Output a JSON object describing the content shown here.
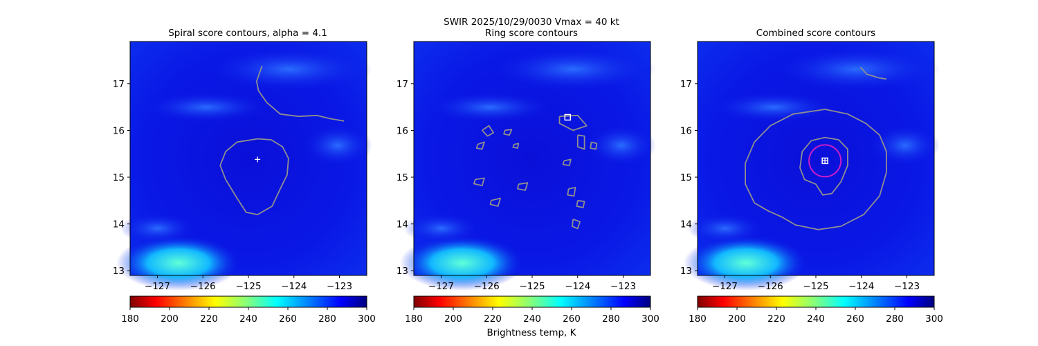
{
  "suptitle_line1": "SWIR  2025/10/29/0030    Vmax = 40 kt",
  "colorbar_label": "Brightness temp, K",
  "colors": {
    "background_field": "#0a14e6",
    "contour": "#8f8f8f",
    "center_marker": "#ffffff",
    "ring_circle": "#c81ec8"
  },
  "chart_data": [
    {
      "type": "heatmap",
      "title": "Spiral score contours, alpha =  4.1",
      "xlim": [
        -127.6,
        -122.4
      ],
      "ylim": [
        12.9,
        17.9
      ],
      "xticks": [
        -127,
        -126,
        -125,
        -124,
        -123
      ],
      "yticks": [
        13,
        14,
        15,
        16,
        17
      ],
      "colorbar": {
        "range": [
          180,
          300
        ],
        "ticks": [
          180,
          200,
          220,
          240,
          260,
          280,
          300
        ]
      },
      "center_marker": {
        "symbol": "plus",
        "lon": -124.8,
        "lat": 15.38
      },
      "contours": [
        {
          "name": "inner",
          "points": [
            [
              -124.8,
              15.82
            ],
            [
              -124.5,
              15.8
            ],
            [
              -124.25,
              15.65
            ],
            [
              -124.12,
              15.4
            ],
            [
              -124.15,
              15.05
            ],
            [
              -124.3,
              14.75
            ],
            [
              -124.48,
              14.38
            ],
            [
              -124.8,
              14.2
            ],
            [
              -125.05,
              14.25
            ],
            [
              -125.25,
              14.55
            ],
            [
              -125.5,
              14.95
            ],
            [
              -125.62,
              15.25
            ],
            [
              -125.5,
              15.55
            ],
            [
              -125.25,
              15.75
            ],
            [
              -124.8,
              15.82
            ]
          ]
        },
        {
          "name": "outer",
          "points": [
            [
              -124.7,
              17.38
            ],
            [
              -124.82,
              17.05
            ],
            [
              -124.78,
              16.85
            ],
            [
              -124.6,
              16.6
            ],
            [
              -124.3,
              16.35
            ],
            [
              -123.9,
              16.3
            ],
            [
              -123.5,
              16.32
            ],
            [
              -123.2,
              16.25
            ],
            [
              -122.9,
              16.2
            ]
          ]
        }
      ]
    },
    {
      "type": "heatmap",
      "title": "Ring score contours",
      "xlim": [
        -127.6,
        -122.4
      ],
      "ylim": [
        12.9,
        17.9
      ],
      "xticks": [
        -127,
        -126,
        -125,
        -124,
        -123
      ],
      "yticks": [
        13,
        14,
        15,
        16,
        17
      ],
      "colorbar": {
        "range": [
          180,
          300
        ],
        "ticks": [
          180,
          200,
          220,
          240,
          260,
          280,
          300
        ]
      },
      "center_marker": {
        "symbol": "square",
        "lon": -124.22,
        "lat": 16.28
      },
      "contours": [
        {
          "name": "blob",
          "points": [
            [
              -126.1,
              16.0
            ],
            [
              -125.95,
              16.1
            ],
            [
              -125.85,
              15.95
            ],
            [
              -125.98,
              15.88
            ],
            [
              -126.1,
              16.0
            ]
          ]
        },
        {
          "name": "blob",
          "points": [
            [
              -126.2,
              15.7
            ],
            [
              -126.05,
              15.75
            ],
            [
              -126.1,
              15.6
            ],
            [
              -126.22,
              15.62
            ],
            [
              -126.2,
              15.7
            ]
          ]
        },
        {
          "name": "blob",
          "points": [
            [
              -125.6,
              16.0
            ],
            [
              -125.45,
              16.02
            ],
            [
              -125.5,
              15.9
            ],
            [
              -125.62,
              15.92
            ],
            [
              -125.6,
              16.0
            ]
          ]
        },
        {
          "name": "blob",
          "points": [
            [
              -125.4,
              15.7
            ],
            [
              -125.3,
              15.72
            ],
            [
              -125.32,
              15.62
            ],
            [
              -125.42,
              15.64
            ],
            [
              -125.4,
              15.7
            ]
          ]
        },
        {
          "name": "blob",
          "points": [
            [
              -126.25,
              14.95
            ],
            [
              -126.05,
              14.98
            ],
            [
              -126.1,
              14.82
            ],
            [
              -126.28,
              14.86
            ],
            [
              -126.25,
              14.95
            ]
          ]
        },
        {
          "name": "blob",
          "points": [
            [
              -125.9,
              14.5
            ],
            [
              -125.7,
              14.55
            ],
            [
              -125.75,
              14.38
            ],
            [
              -125.92,
              14.42
            ],
            [
              -125.9,
              14.5
            ]
          ]
        },
        {
          "name": "blob",
          "points": [
            [
              -125.3,
              14.85
            ],
            [
              -125.1,
              14.88
            ],
            [
              -125.15,
              14.72
            ],
            [
              -125.32,
              14.75
            ],
            [
              -125.3,
              14.85
            ]
          ]
        },
        {
          "name": "blob",
          "points": [
            [
              -124.4,
              16.3
            ],
            [
              -124.0,
              16.32
            ],
            [
              -123.8,
              16.1
            ],
            [
              -124.1,
              16.0
            ],
            [
              -124.4,
              16.15
            ],
            [
              -124.4,
              16.3
            ]
          ]
        },
        {
          "name": "blob",
          "points": [
            [
              -124.0,
              15.9
            ],
            [
              -123.85,
              15.88
            ],
            [
              -123.85,
              15.6
            ],
            [
              -124.0,
              15.65
            ],
            [
              -124.0,
              15.9
            ]
          ]
        },
        {
          "name": "blob",
          "points": [
            [
              -123.7,
              15.75
            ],
            [
              -123.58,
              15.72
            ],
            [
              -123.6,
              15.6
            ],
            [
              -123.72,
              15.62
            ],
            [
              -123.7,
              15.75
            ]
          ]
        },
        {
          "name": "blob",
          "points": [
            [
              -124.3,
              15.35
            ],
            [
              -124.15,
              15.38
            ],
            [
              -124.18,
              15.25
            ],
            [
              -124.32,
              15.27
            ],
            [
              -124.3,
              15.35
            ]
          ]
        },
        {
          "name": "blob",
          "points": [
            [
              -124.2,
              14.75
            ],
            [
              -124.05,
              14.78
            ],
            [
              -124.08,
              14.6
            ],
            [
              -124.22,
              14.62
            ],
            [
              -124.2,
              14.75
            ]
          ]
        },
        {
          "name": "blob",
          "points": [
            [
              -124.0,
              14.5
            ],
            [
              -123.85,
              14.48
            ],
            [
              -123.88,
              14.35
            ],
            [
              -124.02,
              14.38
            ],
            [
              -124.0,
              14.5
            ]
          ]
        },
        {
          "name": "blob",
          "points": [
            [
              -124.1,
              14.1
            ],
            [
              -123.95,
              14.05
            ],
            [
              -124.0,
              13.9
            ],
            [
              -124.12,
              13.95
            ],
            [
              -124.1,
              14.1
            ]
          ]
        }
      ]
    },
    {
      "type": "heatmap",
      "title": "Combined score contours",
      "xlim": [
        -127.6,
        -122.4
      ],
      "ylim": [
        12.9,
        17.9
      ],
      "xticks": [
        -127,
        -126,
        -125,
        -124,
        -123
      ],
      "yticks": [
        13,
        14,
        15,
        16,
        17
      ],
      "colorbar": {
        "range": [
          180,
          300
        ],
        "ticks": [
          180,
          200,
          220,
          240,
          260,
          280,
          300
        ]
      },
      "center_marker": {
        "symbol": "plus-square",
        "lon": -124.8,
        "lat": 15.35
      },
      "ring_circle": {
        "lon": -124.8,
        "lat": 15.35,
        "radius_deg": 0.35
      },
      "contours": [
        {
          "name": "inner",
          "points": [
            [
              -124.8,
              15.85
            ],
            [
              -124.5,
              15.8
            ],
            [
              -124.3,
              15.6
            ],
            [
              -124.3,
              15.25
            ],
            [
              -124.45,
              14.9
            ],
            [
              -124.65,
              14.65
            ],
            [
              -124.85,
              14.62
            ],
            [
              -125.0,
              14.85
            ],
            [
              -125.25,
              14.95
            ],
            [
              -125.35,
              15.2
            ],
            [
              -125.3,
              15.55
            ],
            [
              -125.1,
              15.78
            ],
            [
              -124.8,
              15.85
            ]
          ]
        },
        {
          "name": "outer",
          "points": [
            [
              -124.8,
              16.45
            ],
            [
              -124.3,
              16.35
            ],
            [
              -123.9,
              16.15
            ],
            [
              -123.6,
              15.9
            ],
            [
              -123.45,
              15.55
            ],
            [
              -123.45,
              15.1
            ],
            [
              -123.6,
              14.6
            ],
            [
              -123.95,
              14.2
            ],
            [
              -124.45,
              13.95
            ],
            [
              -124.95,
              13.88
            ],
            [
              -125.45,
              13.98
            ],
            [
              -125.75,
              14.15
            ],
            [
              -126.05,
              14.28
            ],
            [
              -126.35,
              14.45
            ],
            [
              -126.55,
              14.85
            ],
            [
              -126.55,
              15.3
            ],
            [
              -126.35,
              15.75
            ],
            [
              -126.0,
              16.1
            ],
            [
              -125.5,
              16.35
            ],
            [
              -124.8,
              16.45
            ]
          ]
        },
        {
          "name": "north",
          "points": [
            [
              -124.02,
              17.35
            ],
            [
              -123.88,
              17.2
            ],
            [
              -123.6,
              17.12
            ],
            [
              -123.45,
              17.1
            ]
          ]
        }
      ]
    }
  ]
}
